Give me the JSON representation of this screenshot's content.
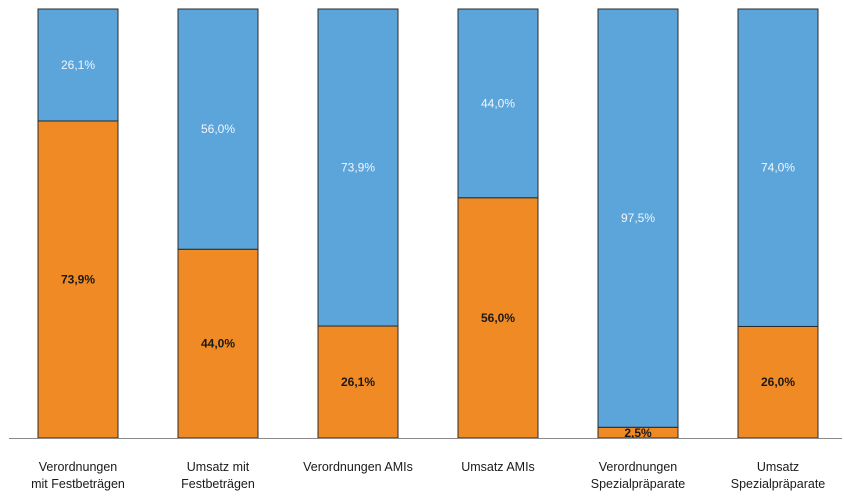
{
  "chart_data": {
    "type": "bar",
    "stacked": true,
    "percent": true,
    "categories": [
      [
        "Verordnungen",
        "mit Festbeträgen"
      ],
      [
        "Umsatz mit",
        "Festbeträgen"
      ],
      [
        "Verordnungen AMIs"
      ],
      [
        "Umsatz AMIs"
      ],
      [
        "Verordnungen",
        "Spezialpräparate"
      ],
      [
        "Umsatz",
        "Spezialpräparate"
      ]
    ],
    "series": [
      {
        "values": [
          73.9,
          44.0,
          26.1,
          56.0,
          2.5,
          26.0
        ],
        "labels": [
          "73,9%",
          "44,0%",
          "26,1%",
          "56,0%",
          "2,5%",
          "26,0%"
        ],
        "color": "#F08A24",
        "label_color": "#1a1a1a"
      },
      {
        "values": [
          26.1,
          56.0,
          73.9,
          44.0,
          97.5,
          74.0
        ],
        "labels": [
          "26,1%",
          "56,0%",
          "73,9%",
          "44,0%",
          "97,5%",
          "74,0%"
        ],
        "color": "#5BA5DB",
        "label_color": "#f2f6fa"
      }
    ],
    "ylim": [
      0,
      100
    ],
    "grid": false,
    "legend": "none",
    "title": "",
    "xlabel": "",
    "ylabel": ""
  }
}
